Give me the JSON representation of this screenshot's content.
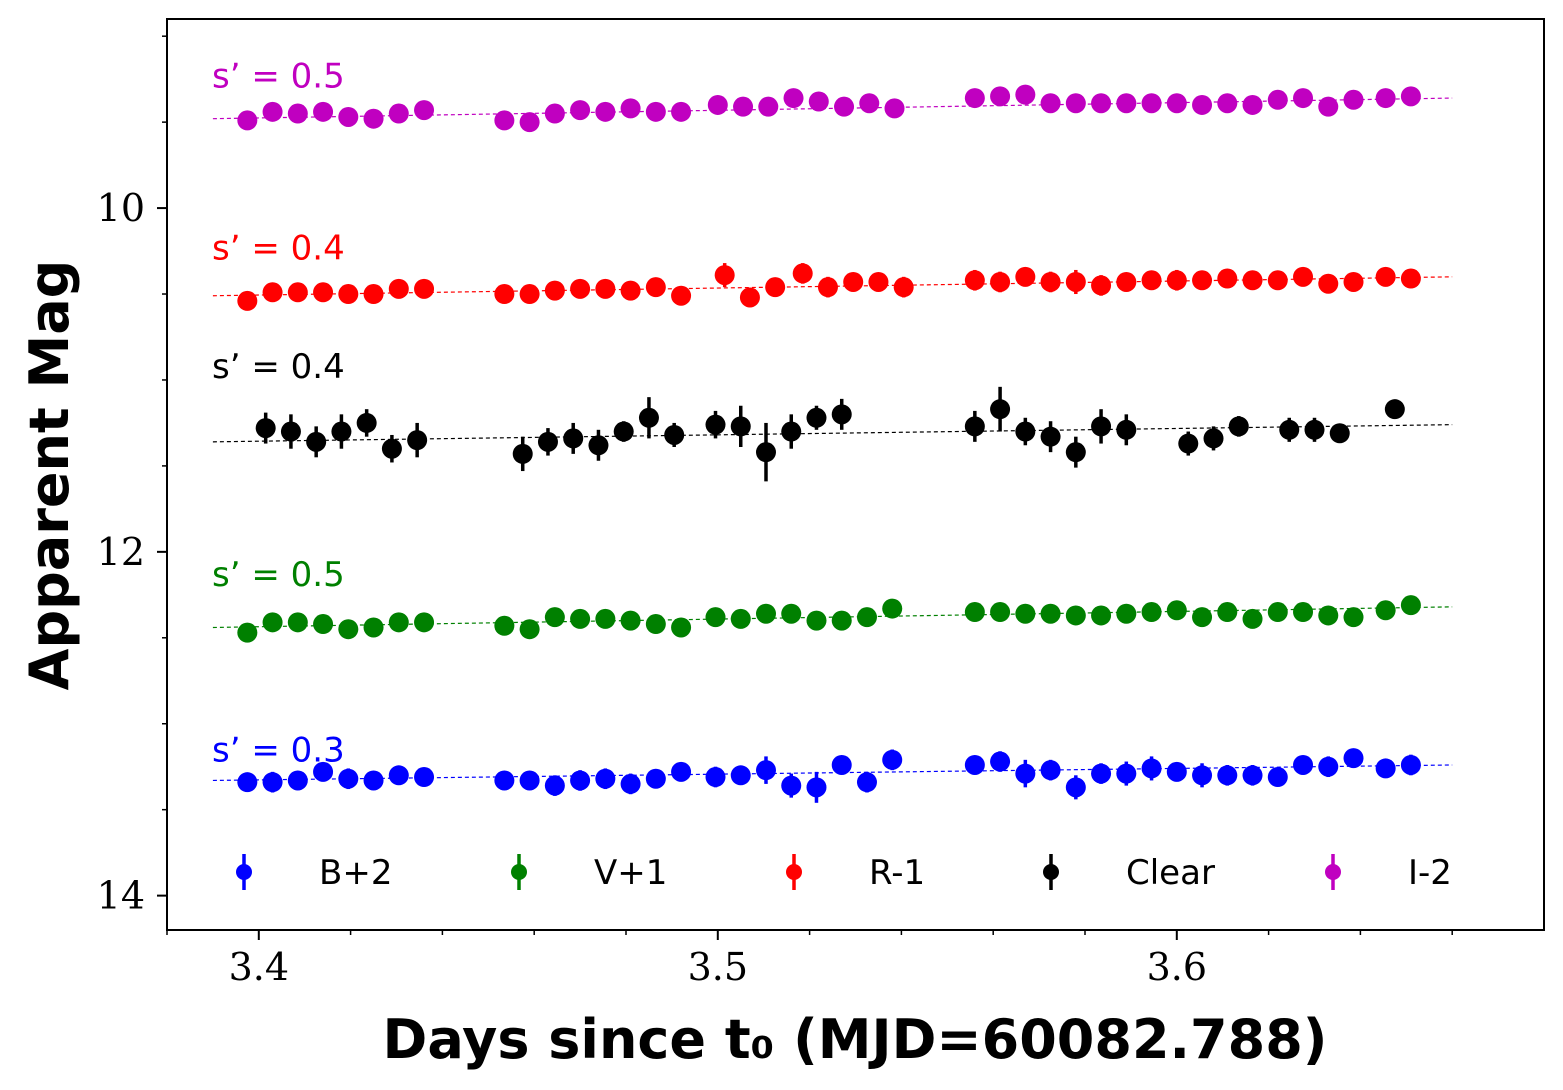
{
  "chart_data": {
    "type": "scatter",
    "title": "",
    "xlabel": "Days since t₀ (MJD=60082.788)",
    "ylabel": "Apparent Mag",
    "xlim": [
      3.38,
      3.68
    ],
    "ylim": [
      14.2,
      8.9
    ],
    "y_inverted": true,
    "xticks": [
      3.4,
      3.5,
      3.6
    ],
    "xtick_labels": [
      "3.4",
      "3.5",
      "3.6"
    ],
    "yticks": [
      10,
      12,
      14
    ],
    "ytick_labels": [
      "10",
      "12",
      "14"
    ],
    "grid": false,
    "legend_position": "bottom",
    "fit_x_range": [
      3.39,
      3.66
    ],
    "series": [
      {
        "name": "B+2",
        "color": "#0000ff",
        "slope_label": "s’ = 0.3",
        "label_mag": 13.15,
        "fit": [
          13.33,
          13.24
        ],
        "x": [
          3.3975,
          3.403,
          3.4085,
          3.414,
          3.4195,
          3.425,
          3.4305,
          3.436,
          3.4535,
          3.459,
          3.4645,
          3.47,
          3.4755,
          3.481,
          3.4865,
          3.492,
          3.4995,
          3.505,
          3.5105,
          3.516,
          3.5215,
          3.527,
          3.5325,
          3.538,
          3.556,
          3.5615,
          3.567,
          3.5725,
          3.578,
          3.5835,
          3.589,
          3.5945,
          3.6,
          3.6055,
          3.611,
          3.6165,
          3.622,
          3.6275,
          3.633,
          3.6385,
          3.6455,
          3.651
        ],
        "y": [
          13.34,
          13.34,
          13.33,
          13.28,
          13.32,
          13.33,
          13.3,
          13.31,
          13.33,
          13.33,
          13.36,
          13.33,
          13.32,
          13.35,
          13.32,
          13.28,
          13.31,
          13.3,
          13.27,
          13.36,
          13.37,
          13.24,
          13.34,
          13.21,
          13.24,
          13.22,
          13.29,
          13.27,
          13.37,
          13.29,
          13.29,
          13.26,
          13.28,
          13.3,
          13.3,
          13.3,
          13.31,
          13.24,
          13.25,
          13.2,
          13.26,
          13.24
        ],
        "err": [
          0.05,
          0.06,
          0.04,
          0.05,
          0.06,
          0.05,
          0.05,
          0.04,
          0.05,
          0.05,
          0.06,
          0.06,
          0.06,
          0.06,
          0.05,
          0.05,
          0.06,
          0.05,
          0.08,
          0.07,
          0.09,
          0.05,
          0.06,
          0.06,
          0.04,
          0.06,
          0.08,
          0.06,
          0.07,
          0.06,
          0.07,
          0.07,
          0.05,
          0.07,
          0.06,
          0.06,
          0.03,
          0.05,
          0.06,
          0.04,
          0.05,
          0.06
        ]
      },
      {
        "name": "V+1",
        "color": "#008000",
        "slope_label": "s’ = 0.5",
        "label_mag": 12.13,
        "fit": [
          12.44,
          12.32
        ],
        "x": [
          3.3975,
          3.403,
          3.4085,
          3.414,
          3.4195,
          3.425,
          3.4305,
          3.436,
          3.4535,
          3.459,
          3.4645,
          3.47,
          3.4755,
          3.481,
          3.4865,
          3.492,
          3.4995,
          3.505,
          3.5105,
          3.516,
          3.5215,
          3.527,
          3.5325,
          3.538,
          3.556,
          3.5615,
          3.567,
          3.5725,
          3.578,
          3.5835,
          3.589,
          3.5945,
          3.6,
          3.6055,
          3.611,
          3.6165,
          3.622,
          3.6275,
          3.633,
          3.6385,
          3.6455,
          3.651
        ],
        "y": [
          12.47,
          12.41,
          12.41,
          12.42,
          12.45,
          12.44,
          12.41,
          12.41,
          12.43,
          12.45,
          12.38,
          12.39,
          12.39,
          12.4,
          12.42,
          12.44,
          12.38,
          12.39,
          12.36,
          12.36,
          12.4,
          12.4,
          12.38,
          12.33,
          12.35,
          12.35,
          12.36,
          12.36,
          12.37,
          12.37,
          12.36,
          12.35,
          12.34,
          12.38,
          12.35,
          12.39,
          12.35,
          12.35,
          12.37,
          12.38,
          12.34,
          12.31
        ],
        "err": [
          0.03,
          0.03,
          0.03,
          0.03,
          0.03,
          0.03,
          0.03,
          0.03,
          0.03,
          0.03,
          0.03,
          0.03,
          0.03,
          0.03,
          0.03,
          0.03,
          0.05,
          0.04,
          0.04,
          0.04,
          0.04,
          0.04,
          0.04,
          0.04,
          0.05,
          0.05,
          0.04,
          0.04,
          0.04,
          0.04,
          0.04,
          0.04,
          0.04,
          0.04,
          0.04,
          0.04,
          0.04,
          0.04,
          0.04,
          0.04,
          0.04,
          0.04
        ]
      },
      {
        "name": "R-1",
        "color": "#ff0000",
        "slope_label": "s’ = 0.4",
        "label_mag": 10.23,
        "fit": [
          10.51,
          10.4
        ],
        "x": [
          3.3975,
          3.403,
          3.4085,
          3.414,
          3.4195,
          3.425,
          3.4305,
          3.436,
          3.4535,
          3.459,
          3.4645,
          3.47,
          3.4755,
          3.481,
          3.4865,
          3.492,
          3.5015,
          3.507,
          3.5125,
          3.5185,
          3.524,
          3.5295,
          3.535,
          3.5405,
          3.556,
          3.5615,
          3.567,
          3.5725,
          3.578,
          3.5835,
          3.589,
          3.5945,
          3.6,
          3.6055,
          3.611,
          3.6165,
          3.622,
          3.6275,
          3.633,
          3.6385,
          3.6455,
          3.651
        ],
        "y": [
          10.54,
          10.49,
          10.49,
          10.49,
          10.5,
          10.5,
          10.47,
          10.47,
          10.5,
          10.5,
          10.48,
          10.47,
          10.47,
          10.48,
          10.46,
          10.51,
          10.39,
          10.52,
          10.46,
          10.38,
          10.46,
          10.43,
          10.43,
          10.46,
          10.42,
          10.43,
          10.4,
          10.43,
          10.43,
          10.45,
          10.43,
          10.42,
          10.42,
          10.42,
          10.41,
          10.42,
          10.42,
          10.4,
          10.44,
          10.43,
          10.4,
          10.41
        ],
        "err": [
          0.03,
          0.03,
          0.03,
          0.03,
          0.03,
          0.03,
          0.03,
          0.03,
          0.03,
          0.03,
          0.03,
          0.03,
          0.03,
          0.03,
          0.03,
          0.03,
          0.07,
          0.04,
          0.04,
          0.06,
          0.06,
          0.04,
          0.04,
          0.06,
          0.06,
          0.06,
          0.05,
          0.06,
          0.07,
          0.06,
          0.05,
          0.05,
          0.06,
          0.05,
          0.04,
          0.04,
          0.04,
          0.04,
          0.04,
          0.04,
          0.04,
          0.04
        ]
      },
      {
        "name": "Clear",
        "color": "#000000",
        "slope_label": "s’ = 0.4",
        "label_mag": 10.92,
        "fit": [
          11.36,
          11.26
        ],
        "x": [
          3.4015,
          3.407,
          3.4125,
          3.418,
          3.4235,
          3.429,
          3.4345,
          3.4575,
          3.463,
          3.4685,
          3.474,
          3.4795,
          3.485,
          3.4905,
          3.4995,
          3.505,
          3.5105,
          3.516,
          3.5215,
          3.527,
          3.556,
          3.5615,
          3.567,
          3.5725,
          3.578,
          3.5835,
          3.589,
          3.6025,
          3.608,
          3.6135,
          3.6245,
          3.63,
          3.6355,
          3.6475
        ],
        "y": [
          11.28,
          11.3,
          11.36,
          11.3,
          11.25,
          11.4,
          11.35,
          11.43,
          11.36,
          11.34,
          11.38,
          11.3,
          11.22,
          11.32,
          11.26,
          11.27,
          11.42,
          11.3,
          11.22,
          11.2,
          11.27,
          11.17,
          11.3,
          11.33,
          11.42,
          11.27,
          11.29,
          11.37,
          11.34,
          11.27,
          11.29,
          11.29,
          11.31,
          11.17
        ],
        "err": [
          0.09,
          0.1,
          0.09,
          0.1,
          0.08,
          0.08,
          0.1,
          0.1,
          0.08,
          0.09,
          0.09,
          0.06,
          0.12,
          0.07,
          0.08,
          0.12,
          0.17,
          0.1,
          0.07,
          0.09,
          0.09,
          0.13,
          0.08,
          0.09,
          0.09,
          0.1,
          0.09,
          0.07,
          0.07,
          0.06,
          0.07,
          0.07,
          0.04,
          0.04
        ]
      },
      {
        "name": "I-2",
        "color": "#c000c0",
        "slope_label": "s’ = 0.5",
        "label_mag": 9.23,
        "fit": [
          9.48,
          9.36
        ],
        "x": [
          3.3975,
          3.403,
          3.4085,
          3.414,
          3.4195,
          3.425,
          3.4305,
          3.436,
          3.4535,
          3.459,
          3.4645,
          3.47,
          3.4755,
          3.481,
          3.4865,
          3.492,
          3.5,
          3.5055,
          3.511,
          3.5165,
          3.522,
          3.5275,
          3.533,
          3.5385,
          3.556,
          3.5615,
          3.567,
          3.5725,
          3.578,
          3.5835,
          3.589,
          3.5945,
          3.6,
          3.6055,
          3.611,
          3.6165,
          3.622,
          3.6275,
          3.633,
          3.6385,
          3.6455,
          3.651
        ],
        "y": [
          9.49,
          9.44,
          9.45,
          9.44,
          9.47,
          9.48,
          9.45,
          9.43,
          9.49,
          9.5,
          9.45,
          9.43,
          9.44,
          9.42,
          9.44,
          9.44,
          9.4,
          9.41,
          9.41,
          9.36,
          9.38,
          9.41,
          9.39,
          9.42,
          9.36,
          9.35,
          9.34,
          9.39,
          9.39,
          9.39,
          9.39,
          9.39,
          9.39,
          9.4,
          9.39,
          9.4,
          9.37,
          9.36,
          9.41,
          9.37,
          9.36,
          9.35
        ],
        "err": [
          0.03,
          0.03,
          0.03,
          0.03,
          0.03,
          0.03,
          0.03,
          0.03,
          0.03,
          0.03,
          0.03,
          0.03,
          0.03,
          0.03,
          0.03,
          0.03,
          0.03,
          0.03,
          0.03,
          0.03,
          0.03,
          0.03,
          0.03,
          0.03,
          0.03,
          0.03,
          0.03,
          0.03,
          0.03,
          0.03,
          0.03,
          0.03,
          0.03,
          0.03,
          0.03,
          0.03,
          0.03,
          0.03,
          0.03,
          0.03,
          0.03,
          0.03
        ]
      }
    ]
  }
}
